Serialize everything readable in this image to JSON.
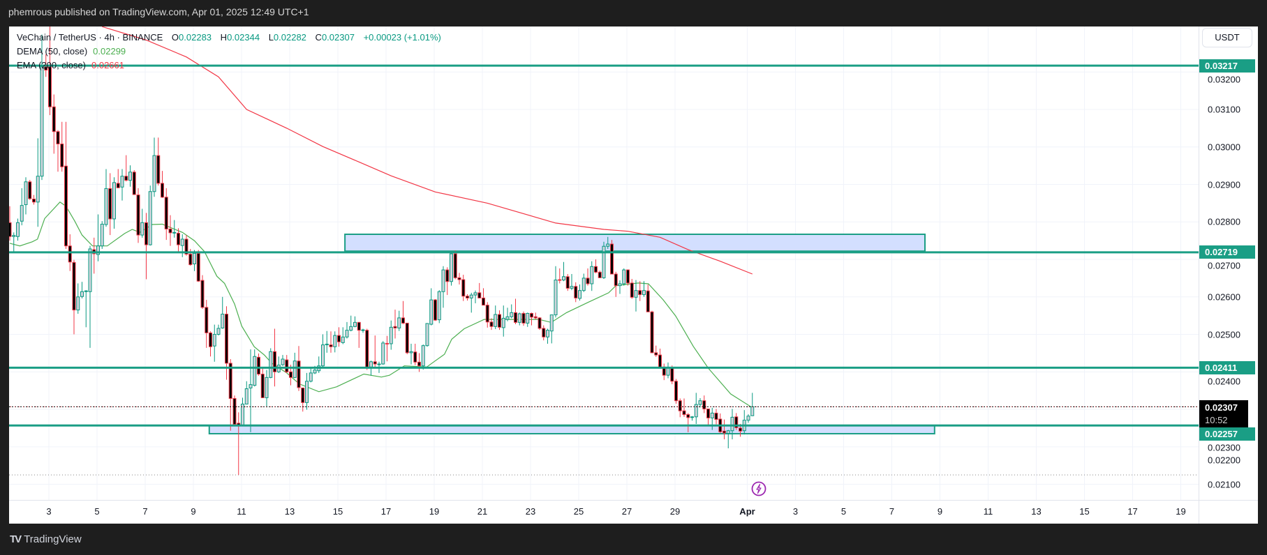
{
  "header": {
    "published": "phemrous published on TradingView.com, Apr 01, 2025 12:49 UTC+1"
  },
  "legend": {
    "symbol": "VeChain / TetherUS · 4h · BINANCE",
    "o_label": "O",
    "o": "0.02283",
    "h_label": "H",
    "h": "0.02344",
    "l_label": "L",
    "l": "0.02282",
    "c_label": "C",
    "c": "0.02307",
    "change": "+0.00023 (+1.01%)",
    "dema_label": "DEMA (50, close)",
    "dema_value": "0.02299",
    "ema_label": "EMA (200, close)",
    "ema_value": "0.02661"
  },
  "currency_button": "USDT",
  "price_ticks": [
    "0.03200",
    "0.03100",
    "0.03000",
    "0.02900",
    "0.02800",
    "0.02700",
    "0.02600",
    "0.02500",
    "0.02400",
    "0.02300",
    "0.02200",
    "0.02100"
  ],
  "level_badges": [
    "0.03217",
    "0.02719",
    "0.02411",
    "0.02257"
  ],
  "last_price": {
    "price": "0.02307",
    "countdown": "10:52"
  },
  "time_labels": [
    {
      "label": "3",
      "day": 0
    },
    {
      "label": "5",
      "day": 2
    },
    {
      "label": "7",
      "day": 4
    },
    {
      "label": "9",
      "day": 6
    },
    {
      "label": "11",
      "day": 8
    },
    {
      "label": "13",
      "day": 10
    },
    {
      "label": "15",
      "day": 12
    },
    {
      "label": "17",
      "day": 14
    },
    {
      "label": "19",
      "day": 16
    },
    {
      "label": "21",
      "day": 18
    },
    {
      "label": "23",
      "day": 20
    },
    {
      "label": "25",
      "day": 22
    },
    {
      "label": "27",
      "day": 24
    },
    {
      "label": "29",
      "day": 26
    },
    {
      "label": "Apr",
      "day": 29,
      "bold": true
    },
    {
      "label": "3",
      "day": 31
    },
    {
      "label": "5",
      "day": 33
    },
    {
      "label": "7",
      "day": 35
    },
    {
      "label": "9",
      "day": 37
    },
    {
      "label": "11",
      "day": 39
    },
    {
      "label": "13",
      "day": 41
    },
    {
      "label": "15",
      "day": 43
    },
    {
      "label": "17",
      "day": 45
    },
    {
      "label": "19",
      "day": 47
    }
  ],
  "footer": {
    "brand": "TradingView",
    "logo_text": "TV"
  },
  "colors": {
    "up": "#089981",
    "down": "#f23645",
    "up_fill": "#d1d4dc",
    "down_fill": "#000000",
    "level": "#1a9e85",
    "zone_fill": "#d3dfff",
    "dema": "#4caf50",
    "ema": "#f23645",
    "grid": "#f0f3fa",
    "alert": "#9c27b0"
  },
  "chart_data": {
    "type": "candlestick",
    "title": "VeChain / TetherUS · 4h · BINANCE",
    "bar_interval": "4h",
    "ohlc_scale": 1e-05,
    "ylim": [
      0.0207,
      0.0333
    ],
    "levels": [
      0.03217,
      0.02719,
      0.02411,
      0.02257
    ],
    "last_price": 0.02307,
    "range_low": 0.02125,
    "zones": [
      {
        "top": 0.02767,
        "bottom": 0.02722,
        "from_bar": 83.5,
        "to_bar": 228
      },
      {
        "top": 0.02257,
        "bottom": 0.02235,
        "from_bar": 49.7,
        "to_bar": 230.4
      }
    ],
    "ema200": [
      [
        23,
        3321
      ],
      [
        34,
        3285
      ],
      [
        44,
        3240
      ],
      [
        52,
        3187
      ],
      [
        59,
        3100
      ],
      [
        69,
        3050
      ],
      [
        78,
        3001
      ],
      [
        87,
        2960
      ],
      [
        95,
        2923
      ],
      [
        106,
        2880
      ],
      [
        119,
        2850
      ],
      [
        136,
        2797
      ],
      [
        148,
        2780
      ],
      [
        154,
        2775
      ],
      [
        162,
        2759
      ],
      [
        169,
        2726
      ],
      [
        177,
        2695
      ],
      [
        185,
        2661
      ]
    ],
    "dema50": [
      [
        0,
        2743
      ],
      [
        2.5,
        2736
      ],
      [
        5.6,
        2747
      ],
      [
        6.9,
        2754
      ],
      [
        8.7,
        2809
      ],
      [
        12.5,
        2853
      ],
      [
        14,
        2842
      ],
      [
        16.2,
        2802
      ],
      [
        18,
        2765
      ],
      [
        20.6,
        2736
      ],
      [
        24.3,
        2736
      ],
      [
        28.6,
        2769
      ],
      [
        30.5,
        2780
      ],
      [
        32.4,
        2772
      ],
      [
        35.5,
        2793
      ],
      [
        38,
        2794
      ],
      [
        43,
        2772
      ],
      [
        46,
        2750
      ],
      [
        48.5,
        2721
      ],
      [
        51.6,
        2655
      ],
      [
        53.5,
        2636
      ],
      [
        56,
        2581
      ],
      [
        57.8,
        2522
      ],
      [
        60.9,
        2467
      ],
      [
        63.4,
        2445
      ],
      [
        65.3,
        2423
      ],
      [
        69,
        2397
      ],
      [
        72.1,
        2368
      ],
      [
        77,
        2347
      ],
      [
        81.4,
        2360
      ],
      [
        88.2,
        2394
      ],
      [
        92.6,
        2386
      ],
      [
        94.6,
        2391
      ],
      [
        98.3,
        2416
      ],
      [
        103.9,
        2413
      ],
      [
        105.8,
        2428
      ],
      [
        108.3,
        2447
      ],
      [
        110.1,
        2487
      ],
      [
        113.2,
        2515
      ],
      [
        118.2,
        2540
      ],
      [
        131.8,
        2540
      ],
      [
        134.9,
        2532
      ],
      [
        138.7,
        2558
      ],
      [
        144.2,
        2586
      ],
      [
        149.2,
        2611
      ],
      [
        151,
        2630
      ],
      [
        156.6,
        2637
      ],
      [
        159.1,
        2635
      ],
      [
        162.8,
        2592
      ],
      [
        165.9,
        2549
      ],
      [
        170.3,
        2468
      ],
      [
        174,
        2410
      ],
      [
        179.6,
        2341
      ],
      [
        184.6,
        2307
      ],
      [
        185,
        2299
      ]
    ],
    "ohlc": [
      [
        2798,
        2842,
        2750,
        2761
      ],
      [
        2761,
        2772,
        2721,
        2764
      ],
      [
        2761,
        2809,
        2750,
        2798
      ],
      [
        2802,
        2890,
        2791,
        2844
      ],
      [
        2846,
        2919,
        2820,
        2907
      ],
      [
        2907,
        2912,
        2859,
        2862
      ],
      [
        2861,
        2872,
        2846,
        2853
      ],
      [
        2853,
        3023,
        2787,
        2922
      ],
      [
        2922,
        3300,
        2912,
        3214
      ],
      [
        3214,
        3247,
        3187,
        3205
      ],
      [
        3214,
        3325,
        3085,
        3107
      ],
      [
        3107,
        3140,
        2982,
        3041
      ],
      [
        3041,
        3045,
        2934,
        3008
      ],
      [
        3008,
        3067,
        2934,
        2947
      ],
      [
        2949,
        3067,
        2728,
        2736
      ],
      [
        2736,
        2767,
        2669,
        2693
      ],
      [
        2692,
        2699,
        2500,
        2565
      ],
      [
        2565,
        2636,
        2555,
        2600
      ],
      [
        2601,
        2640,
        2596,
        2614
      ],
      [
        2614,
        2618,
        2519,
        2616
      ],
      [
        2614,
        2736,
        2464,
        2728
      ],
      [
        2726,
        2758,
        2662,
        2715
      ],
      [
        2713,
        2820,
        2695,
        2736
      ],
      [
        2736,
        2802,
        2728,
        2794
      ],
      [
        2793,
        2941,
        2787,
        2889
      ],
      [
        2889,
        2930,
        2765,
        2808
      ],
      [
        2808,
        2919,
        2782,
        2905
      ],
      [
        2903,
        2941,
        2890,
        2891
      ],
      [
        2893,
        2941,
        2857,
        2922
      ],
      [
        2922,
        2978,
        2908,
        2911
      ],
      [
        2911,
        2951,
        2894,
        2933
      ],
      [
        2933,
        2938,
        2872,
        2873
      ],
      [
        2872,
        2890,
        2744,
        2765
      ],
      [
        2765,
        2835,
        2758,
        2798
      ],
      [
        2798,
        2824,
        2647,
        2739
      ],
      [
        2739,
        2897,
        2737,
        2881
      ],
      [
        2881,
        3025,
        2867,
        2977
      ],
      [
        2977,
        3025,
        2897,
        2903
      ],
      [
        2903,
        2936,
        2864,
        2866
      ],
      [
        2866,
        2890,
        2752,
        2781
      ],
      [
        2781,
        2818,
        2736,
        2771
      ],
      [
        2771,
        2805,
        2758,
        2772
      ],
      [
        2770,
        2783,
        2719,
        2739
      ],
      [
        2737,
        2767,
        2706,
        2754
      ],
      [
        2754,
        2765,
        2710,
        2714
      ],
      [
        2714,
        2728,
        2683,
        2686
      ],
      [
        2688,
        2725,
        2669,
        2716
      ],
      [
        2716,
        2725,
        2640,
        2642
      ],
      [
        2644,
        2658,
        2568,
        2572
      ],
      [
        2572,
        2592,
        2464,
        2504
      ],
      [
        2504,
        2508,
        2441,
        2467
      ],
      [
        2469,
        2526,
        2427,
        2500
      ],
      [
        2500,
        2526,
        2497,
        2516
      ],
      [
        2517,
        2600,
        2515,
        2554
      ],
      [
        2554,
        2575,
        2379,
        2423
      ],
      [
        2423,
        2434,
        2243,
        2329
      ],
      [
        2329,
        2337,
        2258,
        2260
      ],
      [
        2263,
        2292,
        2125,
        2258
      ],
      [
        2258,
        2331,
        2256,
        2314
      ],
      [
        2314,
        2375,
        2313,
        2355
      ],
      [
        2357,
        2460,
        2239,
        2366
      ],
      [
        2364,
        2460,
        2361,
        2441
      ],
      [
        2439,
        2449,
        2390,
        2394
      ],
      [
        2394,
        2412,
        2330,
        2331
      ],
      [
        2331,
        2405,
        2305,
        2385
      ],
      [
        2385,
        2463,
        2383,
        2454
      ],
      [
        2454,
        2515,
        2361,
        2400
      ],
      [
        2400,
        2441,
        2397,
        2418
      ],
      [
        2419,
        2445,
        2416,
        2434
      ],
      [
        2432,
        2445,
        2397,
        2400
      ],
      [
        2400,
        2419,
        2364,
        2385
      ],
      [
        2385,
        2451,
        2383,
        2429
      ],
      [
        2429,
        2469,
        2349,
        2358
      ],
      [
        2357,
        2358,
        2294,
        2318
      ],
      [
        2318,
        2397,
        2299,
        2375
      ],
      [
        2375,
        2412,
        2372,
        2397
      ],
      [
        2397,
        2416,
        2394,
        2405
      ],
      [
        2403,
        2441,
        2397,
        2416
      ],
      [
        2416,
        2500,
        2412,
        2472
      ],
      [
        2472,
        2509,
        2451,
        2474
      ],
      [
        2472,
        2508,
        2451,
        2467
      ],
      [
        2467,
        2508,
        2452,
        2497
      ],
      [
        2497,
        2519,
        2467,
        2480
      ],
      [
        2478,
        2519,
        2474,
        2493
      ],
      [
        2493,
        2533,
        2489,
        2511
      ],
      [
        2511,
        2550,
        2508,
        2521
      ],
      [
        2521,
        2548,
        2519,
        2532
      ],
      [
        2532,
        2533,
        2464,
        2511
      ],
      [
        2511,
        2515,
        2504,
        2512
      ],
      [
        2511,
        2515,
        2405,
        2413
      ],
      [
        2413,
        2430,
        2390,
        2427
      ],
      [
        2427,
        2497,
        2412,
        2421
      ],
      [
        2421,
        2427,
        2397,
        2421
      ],
      [
        2421,
        2482,
        2419,
        2477
      ],
      [
        2476,
        2496,
        2428,
        2475
      ],
      [
        2475,
        2537,
        2459,
        2519
      ],
      [
        2521,
        2566,
        2489,
        2517
      ],
      [
        2517,
        2563,
        2509,
        2544
      ],
      [
        2544,
        2589,
        2527,
        2530
      ],
      [
        2530,
        2530,
        2447,
        2451
      ],
      [
        2451,
        2475,
        2420,
        2454
      ],
      [
        2453,
        2475,
        2418,
        2426
      ],
      [
        2426,
        2450,
        2400,
        2416
      ],
      [
        2416,
        2473,
        2406,
        2470
      ],
      [
        2470,
        2530,
        2467,
        2529
      ],
      [
        2527,
        2623,
        2524,
        2592
      ],
      [
        2592,
        2594,
        2536,
        2538
      ],
      [
        2539,
        2618,
        2530,
        2614
      ],
      [
        2614,
        2682,
        2571,
        2672
      ],
      [
        2672,
        2679,
        2605,
        2641
      ],
      [
        2641,
        2719,
        2630,
        2715
      ],
      [
        2715,
        2724,
        2647,
        2651
      ],
      [
        2651,
        2664,
        2633,
        2646
      ],
      [
        2646,
        2659,
        2589,
        2602
      ],
      [
        2602,
        2607,
        2590,
        2597
      ],
      [
        2597,
        2611,
        2558,
        2605
      ],
      [
        2605,
        2617,
        2583,
        2611
      ],
      [
        2611,
        2637,
        2596,
        2597
      ],
      [
        2597,
        2623,
        2577,
        2578
      ],
      [
        2578,
        2586,
        2518,
        2533
      ],
      [
        2533,
        2543,
        2512,
        2521
      ],
      [
        2521,
        2577,
        2514,
        2553
      ],
      [
        2553,
        2564,
        2512,
        2519
      ],
      [
        2518,
        2577,
        2494,
        2543
      ],
      [
        2540,
        2571,
        2535,
        2547
      ],
      [
        2547,
        2580,
        2543,
        2558
      ],
      [
        2558,
        2595,
        2527,
        2532
      ],
      [
        2532,
        2558,
        2524,
        2555
      ],
      [
        2556,
        2561,
        2523,
        2530
      ],
      [
        2530,
        2558,
        2520,
        2556
      ],
      [
        2556,
        2558,
        2524,
        2546
      ],
      [
        2547,
        2558,
        2540,
        2544
      ],
      [
        2544,
        2546,
        2512,
        2516
      ],
      [
        2516,
        2524,
        2484,
        2493
      ],
      [
        2493,
        2515,
        2475,
        2511
      ],
      [
        2509,
        2552,
        2476,
        2552
      ],
      [
        2552,
        2682,
        2545,
        2645
      ],
      [
        2646,
        2676,
        2636,
        2644
      ],
      [
        2645,
        2693,
        2642,
        2654
      ],
      [
        2654,
        2661,
        2616,
        2623
      ],
      [
        2623,
        2661,
        2618,
        2628
      ],
      [
        2628,
        2639,
        2586,
        2597
      ],
      [
        2596,
        2633,
        2590,
        2617
      ],
      [
        2617,
        2662,
        2613,
        2650
      ],
      [
        2650,
        2676,
        2630,
        2635
      ],
      [
        2635,
        2695,
        2616,
        2681
      ],
      [
        2681,
        2700,
        2663,
        2666
      ],
      [
        2666,
        2670,
        2650,
        2651
      ],
      [
        2651,
        2747,
        2648,
        2735
      ],
      [
        2735,
        2760,
        2728,
        2741
      ],
      [
        2741,
        2752,
        2660,
        2661
      ],
      [
        2661,
        2667,
        2600,
        2630
      ],
      [
        2630,
        2644,
        2608,
        2635
      ],
      [
        2635,
        2676,
        2630,
        2672
      ],
      [
        2672,
        2673,
        2630,
        2637
      ],
      [
        2637,
        2648,
        2595,
        2599
      ],
      [
        2599,
        2645,
        2561,
        2617
      ],
      [
        2617,
        2642,
        2589,
        2606
      ],
      [
        2606,
        2642,
        2600,
        2617
      ],
      [
        2616,
        2633,
        2560,
        2560
      ],
      [
        2560,
        2563,
        2450,
        2451
      ],
      [
        2451,
        2470,
        2440,
        2445
      ],
      [
        2445,
        2462,
        2410,
        2413
      ],
      [
        2413,
        2422,
        2378,
        2391
      ],
      [
        2391,
        2425,
        2383,
        2411
      ],
      [
        2411,
        2417,
        2367,
        2375
      ],
      [
        2375,
        2381,
        2315,
        2323
      ],
      [
        2323,
        2329,
        2279,
        2296
      ],
      [
        2296,
        2329,
        2280,
        2286
      ],
      [
        2286,
        2290,
        2239,
        2278
      ],
      [
        2279,
        2282,
        2270,
        2280
      ],
      [
        2280,
        2344,
        2261,
        2313
      ],
      [
        2313,
        2330,
        2305,
        2323
      ],
      [
        2323,
        2337,
        2290,
        2301
      ],
      [
        2301,
        2301,
        2259,
        2277
      ],
      [
        2277,
        2304,
        2245,
        2290
      ],
      [
        2290,
        2301,
        2260,
        2273
      ],
      [
        2274,
        2289,
        2236,
        2240
      ],
      [
        2242,
        2273,
        2220,
        2237
      ],
      [
        2236,
        2245,
        2196,
        2243
      ],
      [
        2243,
        2301,
        2220,
        2279
      ],
      [
        2280,
        2290,
        2245,
        2251
      ],
      [
        2250,
        2261,
        2227,
        2242
      ],
      [
        2243,
        2298,
        2233,
        2271
      ],
      [
        2271,
        2287,
        2264,
        2282
      ],
      [
        2283,
        2344,
        2282,
        2307
      ]
    ]
  }
}
